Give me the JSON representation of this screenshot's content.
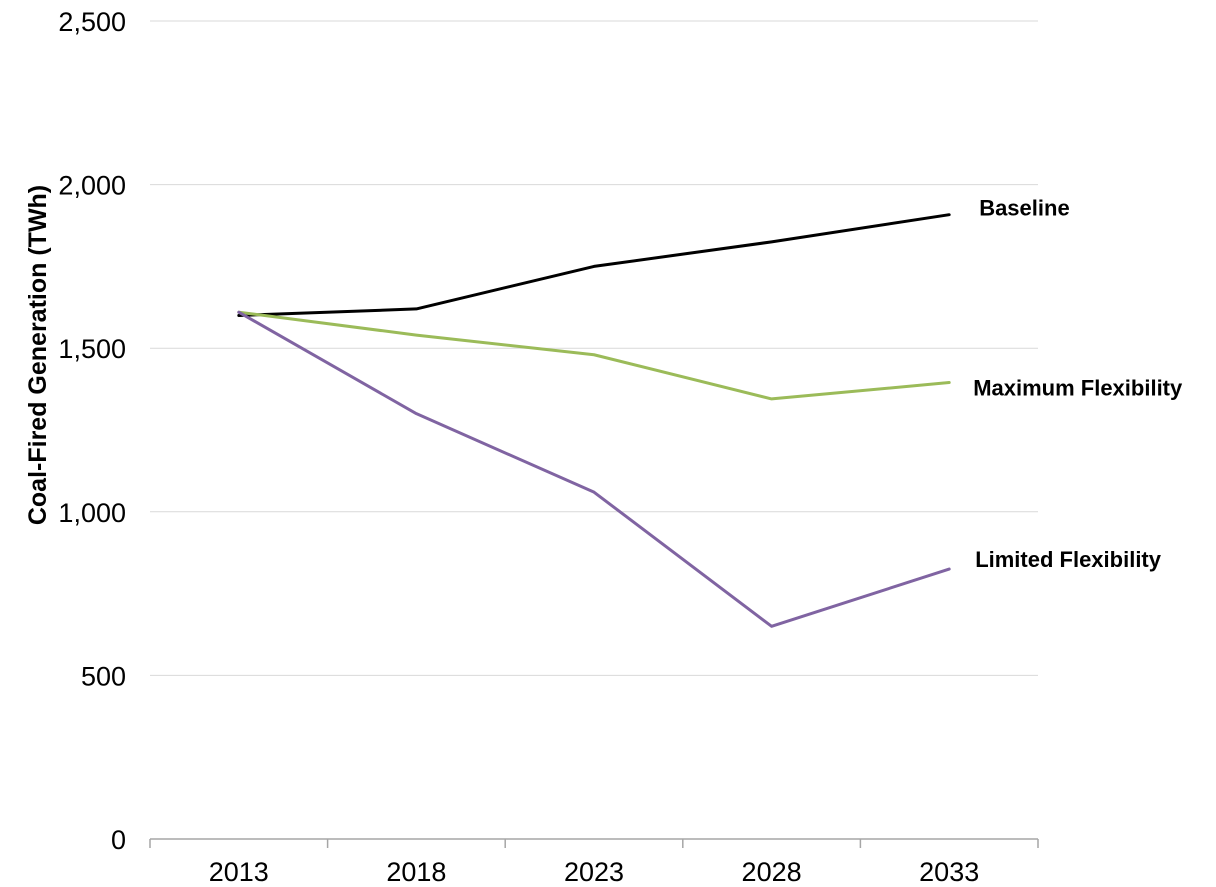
{
  "chart_data": {
    "type": "line",
    "title": "",
    "xlabel": "",
    "ylabel": "Coal-Fired Generation (TWh)",
    "categories": [
      "2013",
      "2018",
      "2023",
      "2028",
      "2033"
    ],
    "ylim": [
      0,
      2500
    ],
    "yticks": [
      "0",
      "500",
      "1,000",
      "1,500",
      "2,000",
      "2,500"
    ],
    "ytick_values": [
      0,
      500,
      1000,
      1500,
      2000,
      2500
    ],
    "grid": true,
    "legend": "direct labels at line ends",
    "series": [
      {
        "name": "Baseline",
        "color": "#000000",
        "values": [
          1600,
          1620,
          1750,
          1825,
          1908
        ]
      },
      {
        "name": "Maximum Flexibility",
        "color": "#9bbb59",
        "values": [
          1610,
          1540,
          1480,
          1345,
          1395
        ]
      },
      {
        "name": "Limited Flexibility",
        "color": "#8064a2",
        "values": [
          1610,
          1300,
          1060,
          650,
          825
        ]
      }
    ]
  }
}
